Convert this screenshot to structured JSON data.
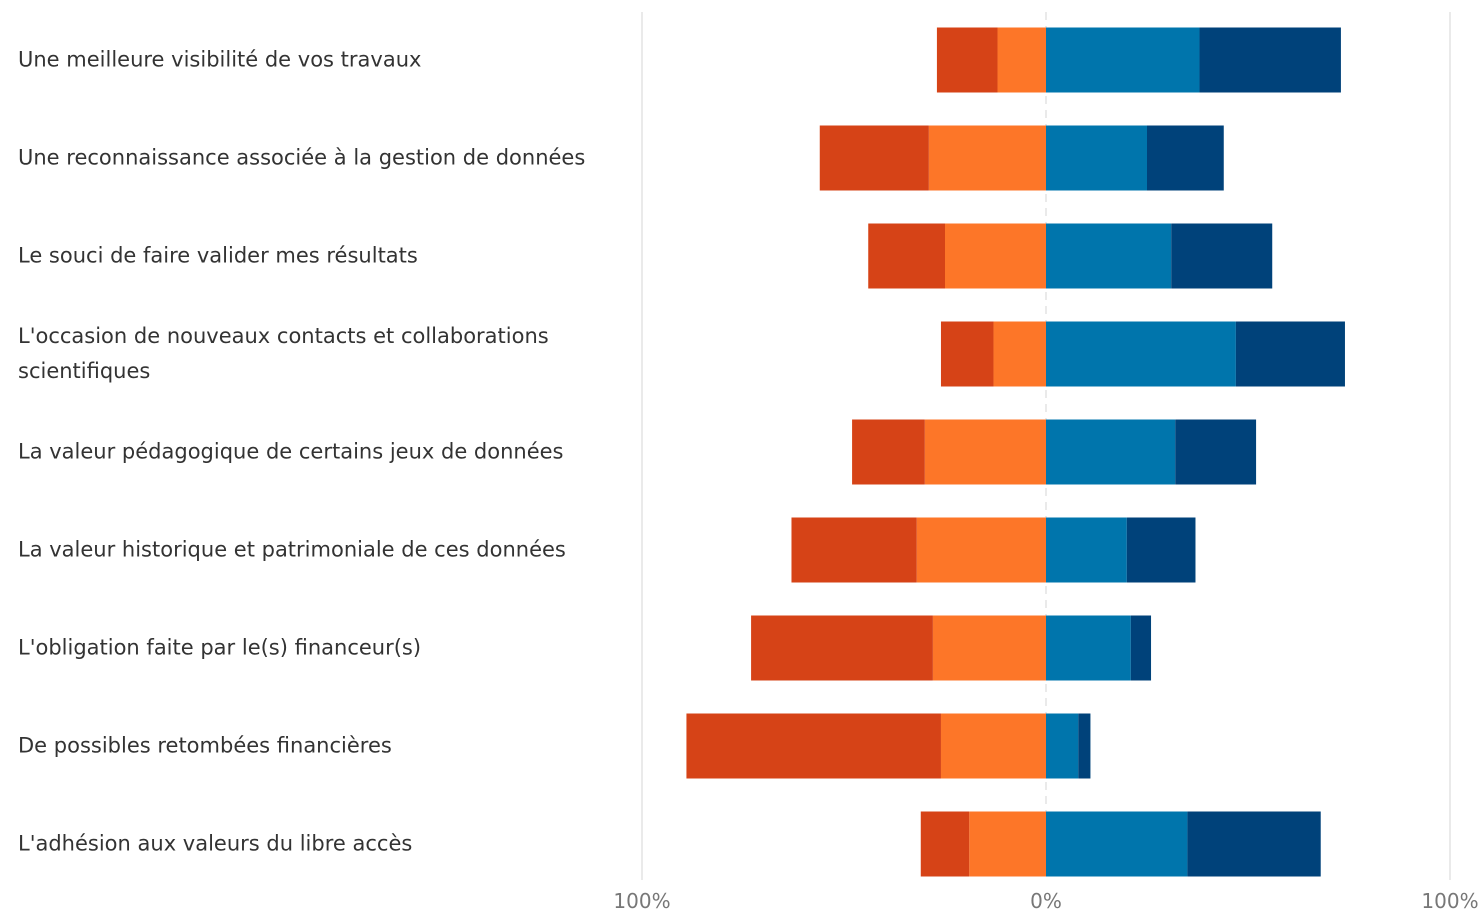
{
  "chart_data": {
    "type": "diverging_bar",
    "categories": [
      "Une meilleure visibilité de vos travaux",
      "Une reconnaissance associée à la gestion de données",
      "Le souci de faire valider mes résultats",
      "L'occasion de nouveaux contacts et collaborations scientifiques",
      "La valeur pédagogique de certains jeux de données",
      "La valeur historique et patrimoniale de ces données",
      "L'obligation faite par le(s) financeur(s)",
      "De possibles retombées financières",
      "L'adhésion aux valeurs du libre accès"
    ],
    "series": [
      {
        "color": "#fd7628",
        "values": [
          -12,
          -29,
          -25,
          -13,
          -30,
          -32,
          -28,
          -26,
          -19
        ]
      },
      {
        "color": "#d64317",
        "values": [
          -15,
          -27,
          -19,
          -13,
          -18,
          -31,
          -45,
          -63,
          -12
        ]
      },
      {
        "color": "#0075ac",
        "values": [
          38,
          25,
          31,
          47,
          32,
          20,
          21,
          8,
          35
        ]
      },
      {
        "color": "#00427a",
        "values": [
          35,
          19,
          25,
          27,
          20,
          17,
          5,
          3,
          33
        ]
      }
    ],
    "xlim": [
      -100,
      100
    ],
    "xticks": [
      {
        "value": -100,
        "label": "100%"
      },
      {
        "value": 0,
        "label": "0%"
      },
      {
        "value": 100,
        "label": "100%"
      }
    ],
    "grid": true
  }
}
